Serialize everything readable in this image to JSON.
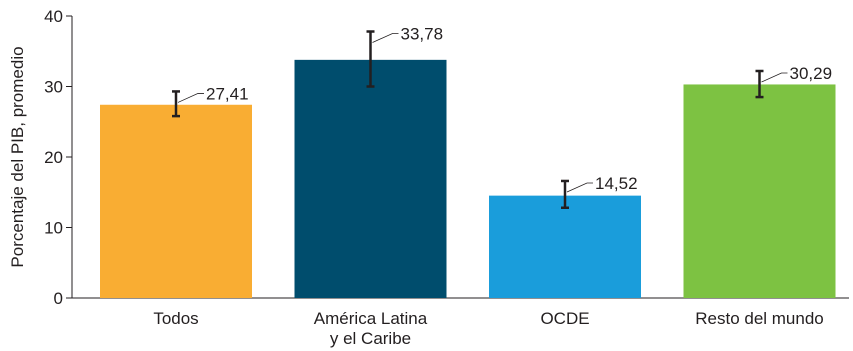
{
  "chart_data": {
    "type": "bar",
    "ylabel": "Porcentaje del PIB, promedio",
    "xlabel": "",
    "ylim": [
      0,
      40
    ],
    "yticks": [
      0,
      10,
      20,
      30,
      40
    ],
    "grid": false,
    "legend": "none",
    "categories": [
      [
        "Todos"
      ],
      [
        "América Latina",
        "y el Caribe"
      ],
      [
        "OCDE"
      ],
      [
        "Resto del mundo"
      ]
    ],
    "values": [
      27.41,
      33.78,
      14.52,
      30.29
    ],
    "value_labels": [
      "27,41",
      "33,78",
      "14,52",
      "30,29"
    ],
    "error_low": [
      25.8,
      30.0,
      12.8,
      28.5
    ],
    "error_high": [
      29.3,
      37.8,
      16.6,
      32.2
    ],
    "colors": [
      "#f9ad33",
      "#004d6d",
      "#1a9ddb",
      "#7dc242"
    ]
  }
}
